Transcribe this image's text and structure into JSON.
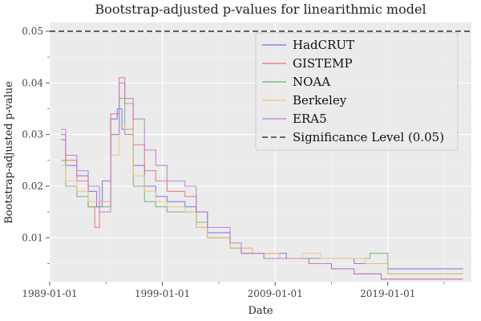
{
  "chart_data": {
    "type": "line",
    "title": "Bootstrap-adjusted p-values for linearithmic model",
    "xlabel": "Date",
    "ylabel": "Bootstrap-adjusted p-value",
    "x_ticks": [
      "1989-01-01",
      "1999-01-01",
      "2009-01-01",
      "2019-01-01"
    ],
    "y_ticks": [
      "0.01",
      "0.02",
      "0.03",
      "0.04",
      "0.05"
    ],
    "xlim": [
      "1989-01-01",
      "2026-06-01"
    ],
    "ylim": [
      0.0015,
      0.0517
    ],
    "grid": true,
    "legend_position": "top-right",
    "reference_line": {
      "label": "Significance Level (0.05)",
      "value": 0.05,
      "color": "#555555",
      "style": "dashed"
    },
    "series": [
      {
        "name": "HadCRUT",
        "color": "#6f6ff0",
        "points": [
          [
            "1990-01-01",
            0.029
          ],
          [
            "1990-06-01",
            0.024
          ],
          [
            "1991-06-01",
            0.022
          ],
          [
            "1992-06-01",
            0.019
          ],
          [
            "1993-03-01",
            0.016
          ],
          [
            "1993-09-01",
            0.021
          ],
          [
            "1994-06-01",
            0.033
          ],
          [
            "1995-01-01",
            0.035
          ],
          [
            "1995-06-01",
            0.031
          ],
          [
            "1996-06-01",
            0.024
          ],
          [
            "1997-06-01",
            0.02
          ],
          [
            "1998-06-01",
            0.018
          ],
          [
            "1999-06-01",
            0.017
          ],
          [
            "2001-01-01",
            0.016
          ],
          [
            "2002-01-01",
            0.015
          ],
          [
            "2003-01-01",
            0.011
          ],
          [
            "2005-01-01",
            0.008
          ],
          [
            "2006-01-01",
            0.007
          ],
          [
            "2008-01-01",
            0.007
          ],
          [
            "2010-01-01",
            0.006
          ],
          [
            "2012-01-01",
            0.006
          ],
          [
            "2014-01-01",
            0.006
          ],
          [
            "2016-01-01",
            0.005
          ],
          [
            "2019-01-01",
            0.004
          ],
          [
            "2022-01-01",
            0.004
          ],
          [
            "2025-09-01",
            0.004
          ]
        ]
      },
      {
        "name": "GISTEMP",
        "color": "#ee7070",
        "points": [
          [
            "1990-01-01",
            0.03
          ],
          [
            "1990-06-01",
            0.025
          ],
          [
            "1991-06-01",
            0.021
          ],
          [
            "1992-06-01",
            0.016
          ],
          [
            "1993-01-01",
            0.012
          ],
          [
            "1993-06-01",
            0.017
          ],
          [
            "1994-06-01",
            0.034
          ],
          [
            "1995-03-01",
            0.041
          ],
          [
            "1995-09-01",
            0.036
          ],
          [
            "1996-06-01",
            0.028
          ],
          [
            "1997-06-01",
            0.023
          ],
          [
            "1998-06-01",
            0.021
          ],
          [
            "1999-06-01",
            0.019
          ],
          [
            "2001-01-01",
            0.018
          ],
          [
            "2002-01-01",
            0.012
          ],
          [
            "2003-01-01",
            0.01
          ],
          [
            "2005-01-01",
            0.008
          ],
          [
            "2007-01-01",
            0.007
          ],
          [
            "2009-06-01",
            0.006
          ],
          [
            "2012-01-01",
            0.005
          ],
          [
            "2014-01-01",
            0.004
          ],
          [
            "2016-01-01",
            0.003
          ],
          [
            "2018-06-01",
            0.002
          ],
          [
            "2022-01-01",
            0.002
          ],
          [
            "2025-09-01",
            0.002
          ]
        ]
      },
      {
        "name": "NOAA",
        "color": "#6fb26f",
        "points": [
          [
            "1990-01-01",
            0.025
          ],
          [
            "1990-06-01",
            0.02
          ],
          [
            "1991-06-01",
            0.018
          ],
          [
            "1992-06-01",
            0.016
          ],
          [
            "1993-06-01",
            0.016
          ],
          [
            "1994-06-01",
            0.03
          ],
          [
            "1995-03-01",
            0.037
          ],
          [
            "1995-09-01",
            0.03
          ],
          [
            "1996-06-01",
            0.02
          ],
          [
            "1997-06-01",
            0.017
          ],
          [
            "1998-06-01",
            0.016
          ],
          [
            "1999-06-01",
            0.015
          ],
          [
            "2001-01-01",
            0.015
          ],
          [
            "2002-01-01",
            0.013
          ],
          [
            "2003-01-01",
            0.01
          ],
          [
            "2005-01-01",
            0.008
          ],
          [
            "2006-01-01",
            0.007
          ],
          [
            "2008-01-01",
            0.006
          ],
          [
            "2010-01-01",
            0.006
          ],
          [
            "2012-01-01",
            0.006
          ],
          [
            "2014-01-01",
            0.006
          ],
          [
            "2016-01-01",
            0.006
          ],
          [
            "2017-06-01",
            0.007
          ],
          [
            "2019-01-01",
            0.003
          ],
          [
            "2022-01-01",
            0.003
          ],
          [
            "2025-09-01",
            0.003
          ]
        ]
      },
      {
        "name": "Berkeley",
        "color": "#f5c67a",
        "points": [
          [
            "1990-01-01",
            0.024
          ],
          [
            "1990-06-01",
            0.021
          ],
          [
            "1991-06-01",
            0.019
          ],
          [
            "1992-06-01",
            0.017
          ],
          [
            "1993-06-01",
            0.017
          ],
          [
            "1994-06-01",
            0.026
          ],
          [
            "1995-03-01",
            0.032
          ],
          [
            "1995-09-01",
            0.031
          ],
          [
            "1996-06-01",
            0.022
          ],
          [
            "1997-06-01",
            0.019
          ],
          [
            "1998-06-01",
            0.017
          ],
          [
            "1999-06-01",
            0.016
          ],
          [
            "2001-01-01",
            0.015
          ],
          [
            "2002-01-01",
            0.012
          ],
          [
            "2003-01-01",
            0.01
          ],
          [
            "2005-01-01",
            0.008
          ],
          [
            "2007-01-01",
            0.007
          ],
          [
            "2009-06-01",
            0.006
          ],
          [
            "2011-06-01",
            0.007
          ],
          [
            "2013-01-01",
            0.006
          ],
          [
            "2015-01-01",
            0.006
          ],
          [
            "2017-01-01",
            0.005
          ],
          [
            "2019-01-01",
            0.003
          ],
          [
            "2022-01-01",
            0.003
          ],
          [
            "2025-09-01",
            0.003
          ]
        ]
      },
      {
        "name": "ERA5",
        "color": "#b87ed0",
        "points": [
          [
            "1990-01-01",
            0.031
          ],
          [
            "1990-06-01",
            0.026
          ],
          [
            "1991-06-01",
            0.023
          ],
          [
            "1992-06-01",
            0.02
          ],
          [
            "1993-06-01",
            0.015
          ],
          [
            "1994-06-01",
            0.03
          ],
          [
            "1995-03-01",
            0.04
          ],
          [
            "1995-09-01",
            0.037
          ],
          [
            "1996-06-01",
            0.033
          ],
          [
            "1997-06-01",
            0.027
          ],
          [
            "1998-06-01",
            0.024
          ],
          [
            "1999-06-01",
            0.021
          ],
          [
            "2001-01-01",
            0.02
          ],
          [
            "2002-01-01",
            0.015
          ],
          [
            "2003-01-01",
            0.012
          ],
          [
            "2005-01-01",
            0.009
          ],
          [
            "2006-01-01",
            0.007
          ],
          [
            "2008-01-01",
            0.006
          ],
          [
            "2010-01-01",
            0.006
          ],
          [
            "2012-01-01",
            0.005
          ],
          [
            "2014-01-01",
            0.004
          ],
          [
            "2016-01-01",
            0.003
          ],
          [
            "2018-06-01",
            0.002
          ],
          [
            "2022-01-01",
            0.002
          ],
          [
            "2025-09-01",
            0.002
          ]
        ]
      }
    ]
  }
}
